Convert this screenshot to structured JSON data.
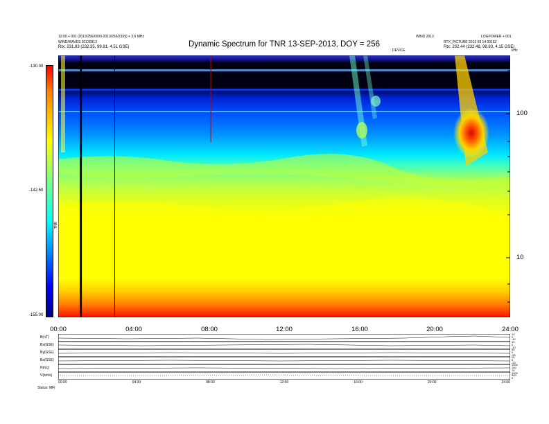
{
  "header": {
    "title": "Dynamic Spectrum for TNR 13-SEP-2013, DOY = 256",
    "left_line1": "12:00 + 001 (2013/256/0000-2013/256/2359) + 3.6 MHz",
    "left_line2": "WIND/WAVES 20130913",
    "left_line3": "Rtx: 231.83 (232.35, 99.81, 4.51 GSE)",
    "center_small": "DEVICE",
    "right_line1": "WIND 2013",
    "right_line2": "LOGPOWER + 001",
    "right_line3": "RTX_PICTURE 2013 09 14 0016Z",
    "right_line4": "Rtx: 232.44 (232.48, 98.83, 4.15 GSE)"
  },
  "colorbar": {
    "top_label": "-130.00",
    "mid_label": "-142.50",
    "bottom_label": "-155.00",
    "axis_label": "TNR",
    "colors": [
      "#000080",
      "#0000ff",
      "#0080ff",
      "#00ffff",
      "#80ff80",
      "#ffff00",
      "#ff8000",
      "#ff0000"
    ]
  },
  "right_axis": {
    "label_100": "100",
    "label_10": "10",
    "unit": "kHz"
  },
  "chart_data": {
    "type": "heatmap",
    "title": "Dynamic Spectrum for TNR 13-SEP-2013, DOY = 256",
    "x_ticks": [
      "00:00",
      "04:00",
      "08:00",
      "12:00",
      "16:00",
      "20:00",
      "24:00"
    ],
    "x_range_hours": [
      0,
      24
    ],
    "y_scale": "log",
    "y_ticks": [
      10,
      100
    ],
    "y_range_khz": [
      4,
      256
    ],
    "color_range_db": [
      -155.0,
      -130.0
    ],
    "vertical_lines_hours": [
      1.2,
      3.0,
      8.1
    ]
  },
  "lower_panels": {
    "row_labels": [
      "B(nT)",
      "Bx(GSE)",
      "By(GSE)",
      "Bz(GSE)",
      "N(/cc)",
      "V(km/s)"
    ],
    "right_scale": [
      "10",
      "0",
      "-10",
      "10",
      "0",
      "-10",
      "50",
      "0",
      "-50",
      "20",
      "0",
      "-20",
      "1000",
      "100",
      "10",
      "1000",
      "500",
      "0"
    ],
    "x_ticks": [
      "00:00",
      "04:00",
      "08:00",
      "12:00",
      "16:00",
      "20:00",
      "24:00"
    ],
    "footer": "Status: MFI"
  }
}
